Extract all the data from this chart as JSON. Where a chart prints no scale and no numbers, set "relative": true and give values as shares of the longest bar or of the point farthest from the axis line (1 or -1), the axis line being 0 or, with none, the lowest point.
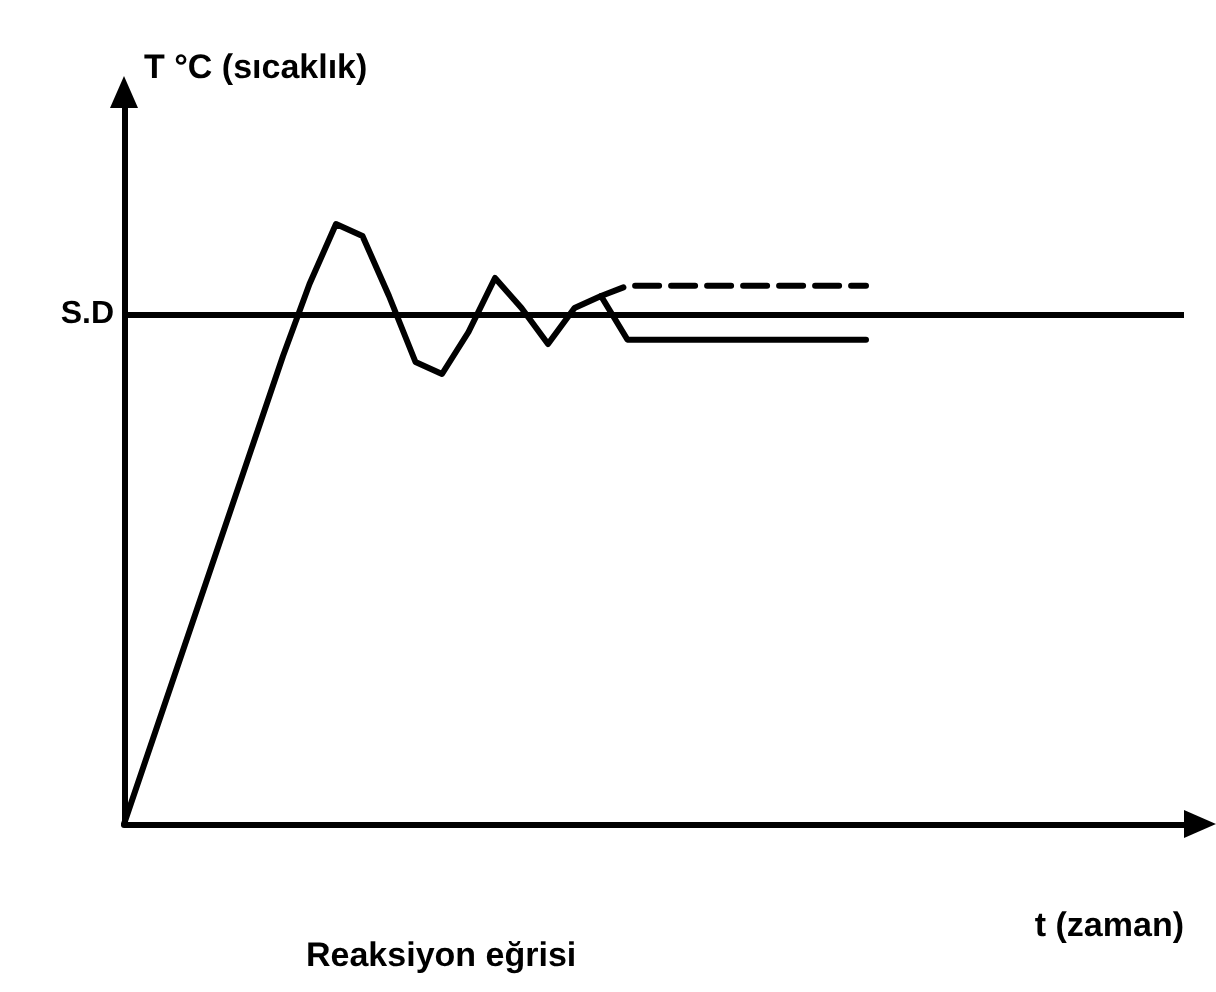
{
  "chart_data": {
    "type": "line",
    "relative": true,
    "ylabel": "T °C (sıcaklık)",
    "xlabel": "t (zaman)",
    "annotations": [
      "Reaksiyon eğrisi"
    ],
    "grid": false,
    "marker": "none",
    "categories": [
      null,
      null,
      null,
      null,
      null,
      null,
      null,
      null,
      null,
      null,
      null,
      null,
      null,
      null,
      null,
      null,
      null,
      null,
      null,
      null,
      null,
      null,
      null,
      null,
      null,
      null,
      null,
      null,
      null,
      null,
      null,
      null,
      null,
      null,
      null,
      null,
      null,
      null,
      null,
      null,
      null
    ],
    "series": [
      {
        "color": "#000000",
        "values": [
          0,
          0.13,
          0.26,
          0.39,
          0.52,
          0.65,
          0.78,
          0.9,
          1,
          0.98,
          0.88,
          0.77,
          0.75,
          0.82,
          0.91,
          0.86,
          0.8,
          0.86,
          0.88,
          0.807,
          0.807,
          0.807,
          0.807,
          0.807,
          0.807,
          0.807,
          0.807,
          0.807,
          0.807,
          null,
          null,
          null,
          null,
          null,
          null,
          null,
          null,
          null,
          null,
          null,
          null
        ]
      },
      {
        "color": "#000000",
        "line_style": "dashed",
        "values": [
          null,
          null,
          null,
          null,
          null,
          null,
          null,
          null,
          null,
          null,
          null,
          null,
          null,
          null,
          null,
          null,
          null,
          null,
          0.88,
          0.897,
          0.897,
          0.897,
          0.897,
          0.897,
          0.897,
          0.897,
          0.897,
          0.897,
          0.897,
          null,
          null,
          null,
          null,
          null,
          null,
          null,
          null,
          null,
          null,
          null,
          null
        ]
      }
    ],
    "ref_lines": [
      {
        "axis": "y",
        "value": 0.85,
        "label": "S.D",
        "color": "#000000"
      }
    ]
  }
}
